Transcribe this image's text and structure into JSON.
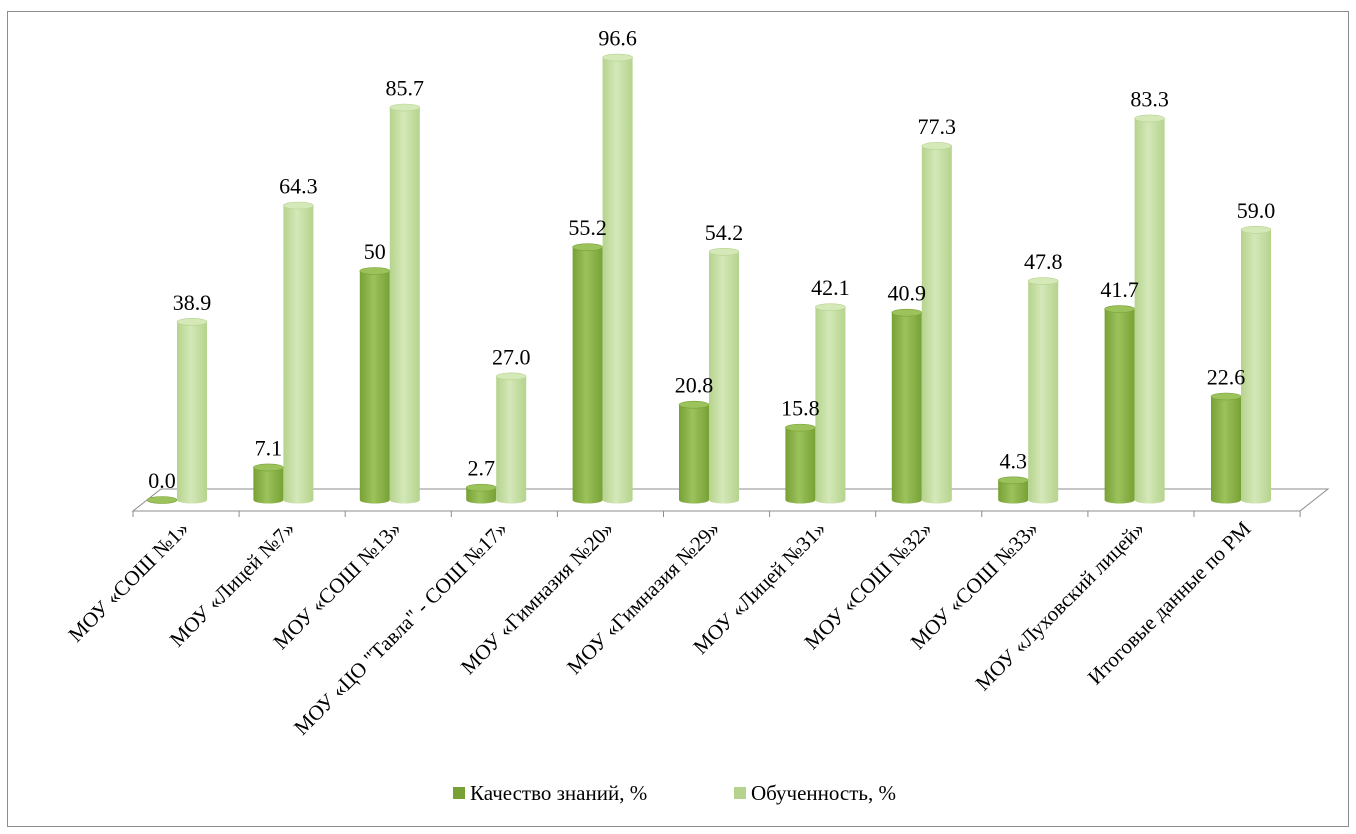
{
  "chart_data": {
    "type": "bar",
    "title": "",
    "xlabel": "",
    "ylabel": "",
    "ylim": [
      0,
      100
    ],
    "grid": false,
    "legend_position": "bottom",
    "categories": [
      "МОУ «СОШ №1»",
      "МОУ «Лицей №7»",
      "МОУ «СОШ №13»",
      "МОУ «ЦО \"Тавла\" - СОШ №17»",
      "МОУ «Гимназия №20»",
      "МОУ «Гимназия №29»",
      "МОУ «Лицей №31»",
      "МОУ «СОШ №32»",
      "МОУ «СОШ №33»",
      "МОУ «Луховский лицей»",
      "Итоговые данные по РМ"
    ],
    "series": [
      {
        "name": "Качество знаний, %",
        "values": [
          0.0,
          7.1,
          50,
          2.7,
          55.2,
          20.8,
          15.8,
          40.9,
          4.3,
          41.7,
          22.6
        ],
        "labels": [
          "0.0",
          "7.1",
          "50",
          "2.7",
          "55.2",
          "20.8",
          "15.8",
          "40.9",
          "4.3",
          "41.7",
          "22.6"
        ],
        "color": "#77a135",
        "top_color": "#9cc25c"
      },
      {
        "name": "Обученность, %",
        "values": [
          38.9,
          64.3,
          85.7,
          27.0,
          96.6,
          54.2,
          42.1,
          77.3,
          47.8,
          83.3,
          59.0
        ],
        "labels": [
          "38.9",
          "64.3",
          "85.7",
          "27.0",
          "96.6",
          "54.2",
          "42.1",
          "77.3",
          "47.8",
          "83.3",
          "59.0"
        ],
        "color": "#b5d38d",
        "top_color": "#d4e8b8"
      }
    ]
  }
}
